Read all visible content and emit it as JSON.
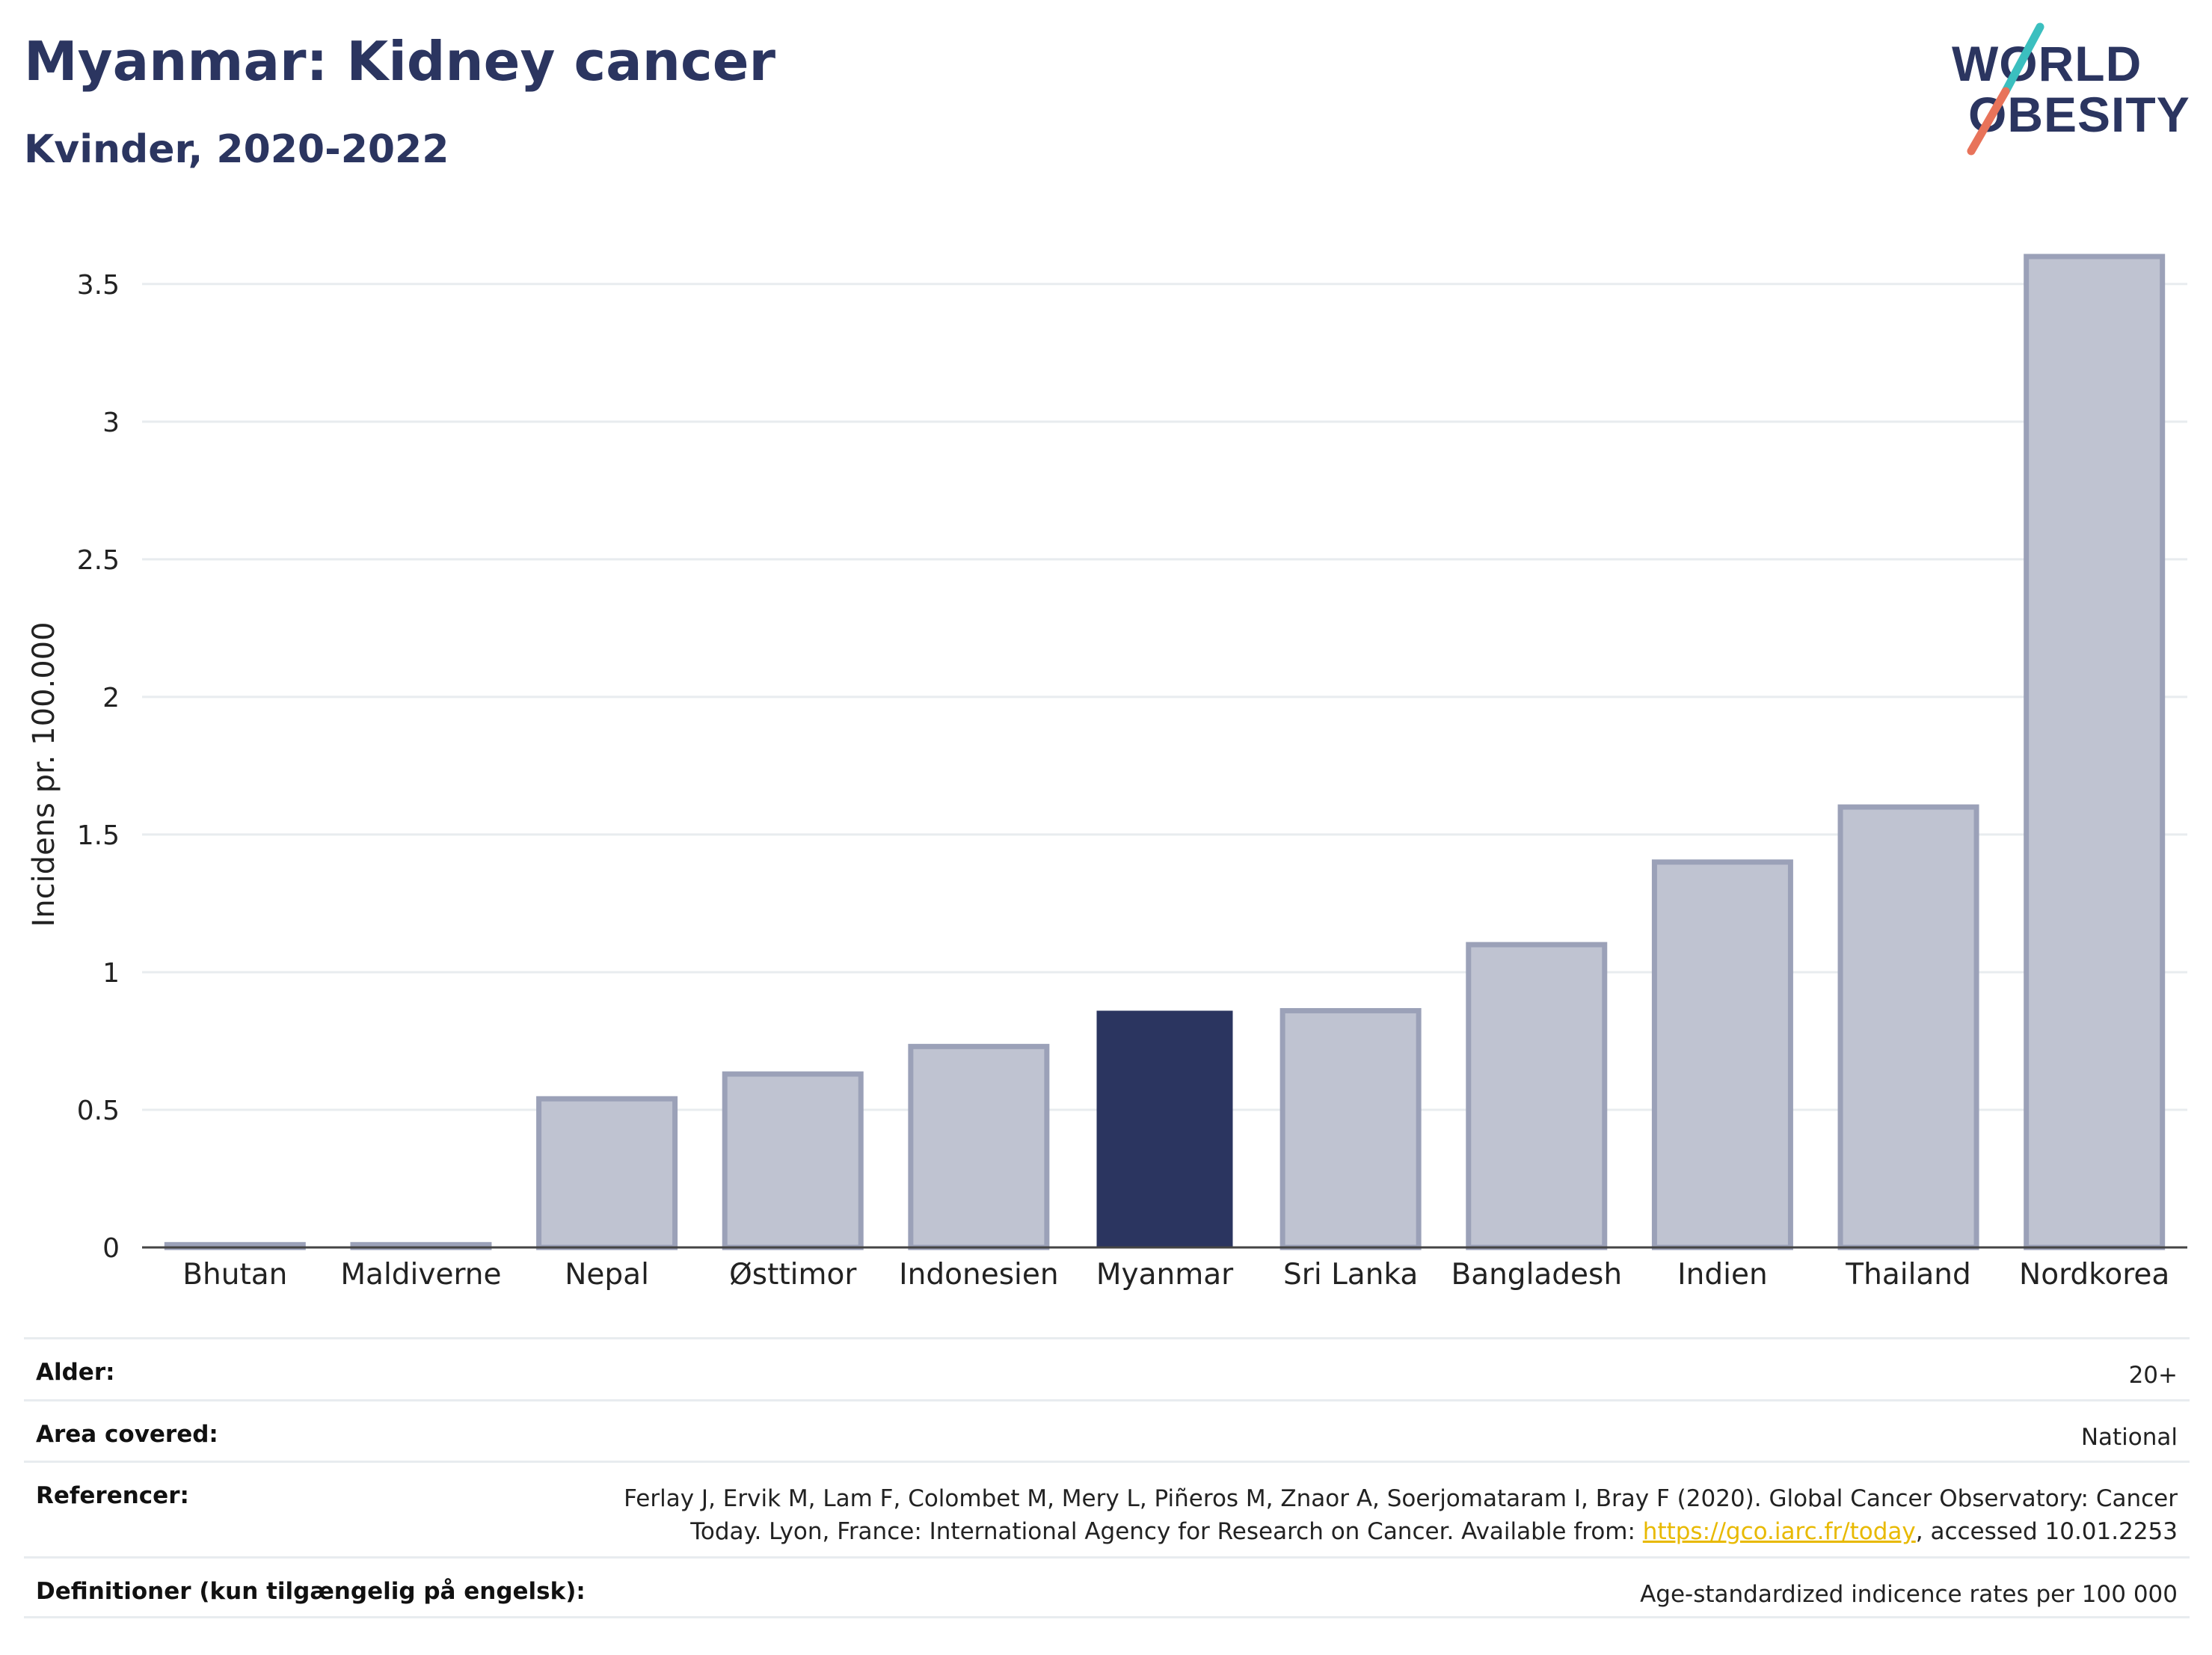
{
  "header": {
    "title": "Myanmar: Kidney cancer",
    "subtitle": "Kvinder, 2020-2022"
  },
  "logo": {
    "line1": "WORLD",
    "line2": "OBESITY"
  },
  "colors": {
    "highlight": "#2b3560",
    "bar_fill": "#bfc3d1",
    "bar_stroke": "#9ba1b8",
    "grid": "#e8ecef",
    "link": "#e8b900"
  },
  "chart_data": {
    "type": "bar",
    "title": "Myanmar: Kidney cancer",
    "subtitle": "Kvinder, 2020-2022",
    "ylabel": "Incidens pr. 100.000",
    "xlabel": "",
    "categories": [
      "Bhutan",
      "Maldiverne",
      "Nepal",
      "Østtimor",
      "Indonesien",
      "Myanmar",
      "Sri Lanka",
      "Bangladesh",
      "Indien",
      "Thailand",
      "Nordkorea"
    ],
    "values": [
      0.01,
      0.01,
      0.54,
      0.63,
      0.73,
      0.86,
      0.86,
      1.1,
      1.4,
      1.6,
      3.6
    ],
    "highlight": "Myanmar",
    "ylim": [
      0,
      3.6
    ],
    "yticks": [
      {
        "value": 0,
        "label": "0"
      },
      {
        "value": 0.5,
        "label": "0.5"
      },
      {
        "value": 1,
        "label": "1"
      },
      {
        "value": 1.5,
        "label": "1.5"
      },
      {
        "value": 2,
        "label": "2"
      },
      {
        "value": 2.5,
        "label": "2.5"
      },
      {
        "value": 3,
        "label": "3"
      },
      {
        "value": 3.5,
        "label": "3.5"
      }
    ],
    "grid": true,
    "legend": "none"
  },
  "info_table": [
    {
      "label": "Alder:",
      "value": "20+"
    },
    {
      "label": "Area covered:",
      "value": "National"
    },
    {
      "label": "Referencer:",
      "value_line1": "Ferlay J, Ervik M, Lam F, Colombet M, Mery L, Piñeros M, Znaor A, Soerjomataram I, Bray F (2020). Global Cancer Observatory: Cancer",
      "value_line2_before": "Today. Lyon, France: International Agency for Research on Cancer. Available from: ",
      "link_text": "https://gco.iarc.fr/today",
      "value_line2_after": ", accessed 10.01.2253"
    },
    {
      "label": "Definitioner (kun tilgængelig på engelsk):",
      "value": "Age-standardized indicence rates per 100 000"
    }
  ]
}
